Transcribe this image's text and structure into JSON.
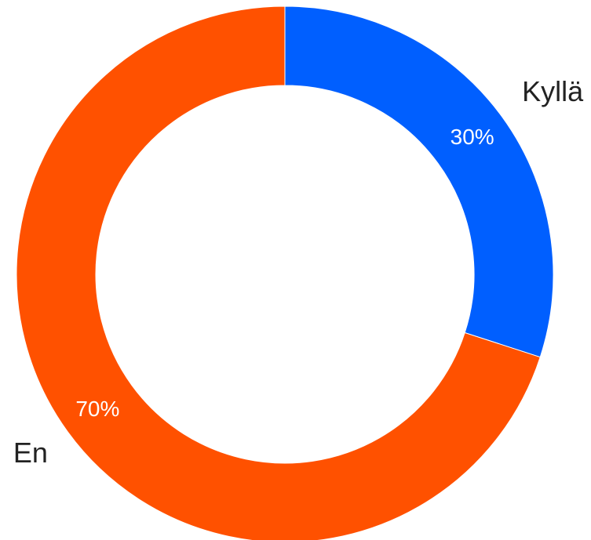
{
  "chart_data": {
    "type": "pie",
    "donut": true,
    "categories": [
      "Kyllä",
      "En"
    ],
    "values": [
      30,
      70
    ],
    "percent_labels": [
      "30%",
      "70%"
    ],
    "colors": [
      "#005fff",
      "#ff5100"
    ],
    "start_angle_deg": 0,
    "direction": "clockwise"
  }
}
